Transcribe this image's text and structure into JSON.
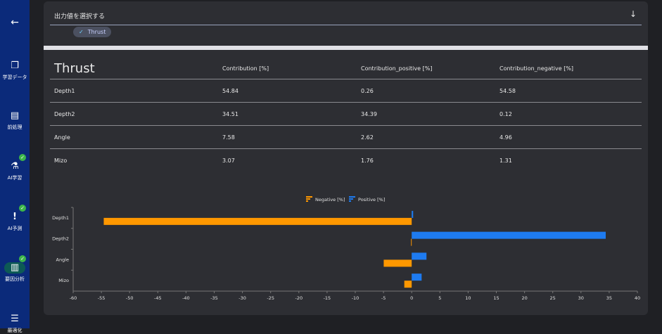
{
  "sidebar": {
    "items": [
      {
        "label": "",
        "icon": "back-arrow-icon"
      },
      {
        "label": "学習データ",
        "icon": "files-icon",
        "done": false
      },
      {
        "label": "前処理",
        "icon": "document-icon",
        "done": false
      },
      {
        "label": "AI学習",
        "icon": "flask-icon",
        "done": true
      },
      {
        "label": "AI予測",
        "icon": "exclamation-icon",
        "done": true
      },
      {
        "label": "要因分析",
        "icon": "bar-chart-icon",
        "done": true,
        "active": true
      },
      {
        "label": "最適化",
        "icon": "sliders-icon",
        "done": false
      }
    ]
  },
  "selector": {
    "title": "出力値を選択する",
    "chip": "Thrust"
  },
  "table": {
    "title": "Thrust",
    "headers": [
      "Contribution [%]",
      "Contribution_positive [%]",
      "Contribution_negative [%]"
    ],
    "rows": [
      [
        "Depth1",
        "54.84",
        "0.26",
        "54.58"
      ],
      [
        "Depth2",
        "34.51",
        "34.39",
        "0.12"
      ],
      [
        "Angle",
        "7.58",
        "2.62",
        "4.96"
      ],
      [
        "Mizo",
        "3.07",
        "1.76",
        "1.31"
      ]
    ]
  },
  "chart_data": {
    "type": "bar",
    "orientation": "horizontal",
    "categories": [
      "Depth1",
      "Depth2",
      "Angle",
      "Mizo"
    ],
    "series": [
      {
        "name": "Negative [%]",
        "color": "#ff9800",
        "values": [
          -54.58,
          -0.12,
          -4.96,
          -1.31
        ]
      },
      {
        "name": "Positive [%]",
        "color": "#1e7bf0",
        "values": [
          0.26,
          34.39,
          2.62,
          1.76
        ]
      }
    ],
    "xlim": [
      -60,
      40
    ],
    "xticks": [
      "-60",
      "-55",
      "-50",
      "-45",
      "-40",
      "-35",
      "-30",
      "-25",
      "-20",
      "-15",
      "-10",
      "-5",
      "0",
      "5",
      "10",
      "15",
      "20",
      "25",
      "30",
      "35",
      "40"
    ],
    "legend": "top-center",
    "grid": false
  }
}
